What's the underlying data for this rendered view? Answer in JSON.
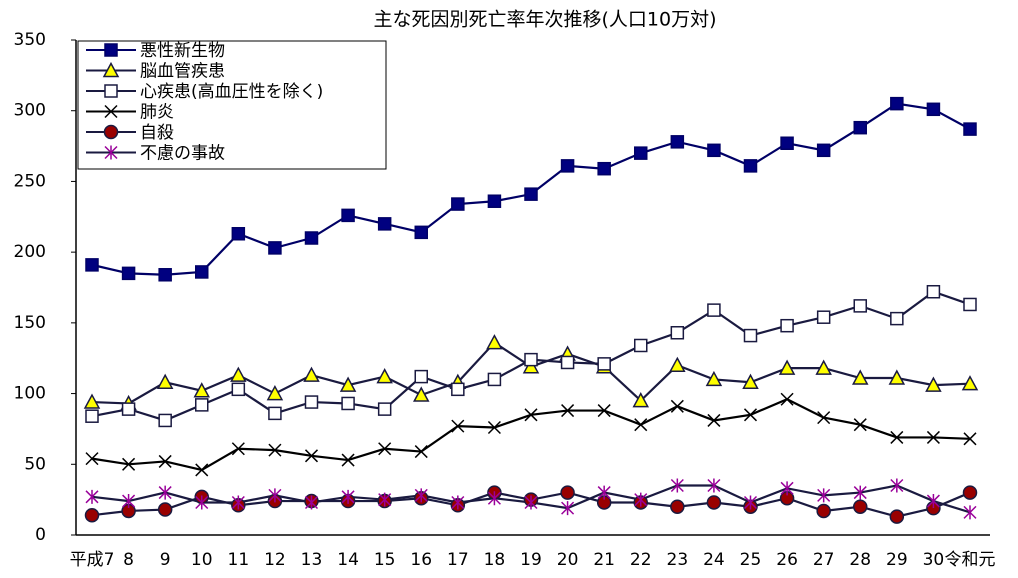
{
  "chart_data": {
    "type": "line",
    "title": "主な死因別死亡率年次推移(人口10万対)",
    "categories": [
      "平成7",
      "8",
      "9",
      "10",
      "11",
      "12",
      "13",
      "14",
      "15",
      "16",
      "17",
      "18",
      "19",
      "20",
      "21",
      "22",
      "23",
      "24",
      "25",
      "26",
      "27",
      "28",
      "29",
      "30",
      "令和元"
    ],
    "ylim": [
      0,
      350
    ],
    "yticks": [
      0,
      50,
      100,
      150,
      200,
      250,
      300,
      350
    ],
    "legend": "upper-left",
    "series": [
      {
        "name": "悪性新生物",
        "color": "#000066",
        "marker": "square",
        "marker_fill": "#000080",
        "values": [
          191,
          185,
          184,
          186,
          213,
          203,
          210,
          226,
          220,
          214,
          234,
          236,
          241,
          261,
          259,
          270,
          278,
          272,
          261,
          277,
          272,
          288,
          305,
          301,
          287
        ]
      },
      {
        "name": "脳血管疾患",
        "color": "#1a1a40",
        "marker": "triangle",
        "marker_fill": "#ffff00",
        "values": [
          94,
          93,
          108,
          102,
          113,
          100,
          113,
          106,
          112,
          99,
          108,
          136,
          119,
          128,
          119,
          95,
          120,
          110,
          108,
          118,
          118,
          111,
          111,
          106,
          107
        ]
      },
      {
        "name": "心疾患(高血圧性を除く)",
        "color": "#1a1a40",
        "marker": "square",
        "marker_fill": "#ffffff",
        "values": [
          84,
          89,
          81,
          92,
          103,
          86,
          94,
          93,
          89,
          112,
          103,
          110,
          124,
          122,
          121,
          134,
          143,
          159,
          141,
          148,
          154,
          162,
          153,
          172,
          163
        ]
      },
      {
        "name": "肺炎",
        "color": "#000000",
        "marker": "x",
        "marker_fill": "none",
        "values": [
          54,
          50,
          52,
          46,
          61,
          60,
          56,
          53,
          61,
          59,
          77,
          76,
          85,
          88,
          88,
          78,
          91,
          81,
          85,
          96,
          83,
          78,
          69,
          69,
          68
        ]
      },
      {
        "name": "自殺",
        "color": "#1a1a40",
        "marker": "circle",
        "marker_fill": "#990000",
        "values": [
          14,
          17,
          18,
          27,
          21,
          24,
          24,
          24,
          24,
          26,
          21,
          30,
          25,
          30,
          23,
          23,
          20,
          23,
          20,
          26,
          17,
          20,
          13,
          19,
          30
        ]
      },
      {
        "name": "不慮の事故",
        "color": "#1a1a40",
        "marker": "star",
        "marker_fill": "#990099",
        "values": [
          27,
          24,
          30,
          23,
          23,
          28,
          23,
          27,
          25,
          28,
          23,
          26,
          23,
          19,
          30,
          25,
          35,
          35,
          23,
          33,
          28,
          30,
          35,
          24,
          16
        ]
      }
    ]
  }
}
